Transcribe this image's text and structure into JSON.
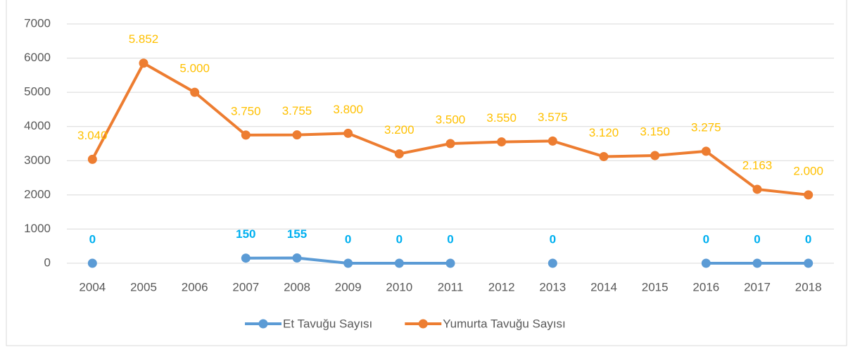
{
  "chart_data": {
    "type": "line",
    "categories": [
      "2004",
      "2005",
      "2006",
      "2007",
      "2008",
      "2009",
      "2010",
      "2011",
      "2012",
      "2013",
      "2014",
      "2015",
      "2016",
      "2017",
      "2018"
    ],
    "series": [
      {
        "name": "Et Tavuğu Sayısı",
        "color": "#5b9bd5",
        "label_color": "#00b0f0",
        "values": [
          0,
          null,
          null,
          150,
          155,
          0,
          0,
          0,
          null,
          0,
          null,
          null,
          0,
          0,
          0
        ]
      },
      {
        "name": "Yumurta Tavuğu Sayısı",
        "color": "#ed7d31",
        "label_color": "#ffc000",
        "values": [
          3040,
          5852,
          5000,
          3750,
          3755,
          3800,
          3200,
          3500,
          3550,
          3575,
          3120,
          3150,
          3275,
          2163,
          2000
        ],
        "value_labels": [
          "3.040",
          "5.852",
          "5.000",
          "3.750",
          "3.755",
          "3.800",
          "3.200",
          "3.500",
          "3.550",
          "3.575",
          "3.120",
          "3.150",
          "3.275",
          "2.163",
          "2.000"
        ]
      }
    ],
    "ylim": [
      0,
      7000
    ],
    "yticks": [
      0,
      1000,
      2000,
      3000,
      4000,
      5000,
      6000,
      7000
    ],
    "grid": true,
    "legend": "bottom"
  }
}
